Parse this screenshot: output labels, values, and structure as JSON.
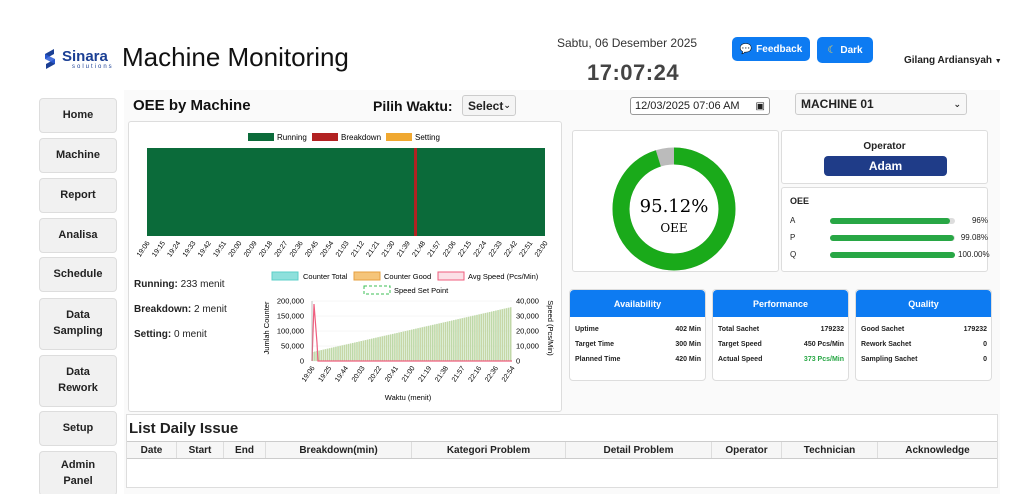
{
  "header": {
    "logo_name": "Sinara",
    "logo_sub": "solutions",
    "title": "Machine Monitoring",
    "date": "Sabtu, 06 Desember 2025",
    "time": "17:07:24",
    "feedback_label": "Feedback",
    "dark_label": "Dark",
    "user_name": "Gilang Ardiansyah"
  },
  "sidebar": {
    "items": [
      "Home",
      "Machine",
      "Report",
      "Analisa",
      "Schedule",
      "Data Sampling",
      "Data Rework",
      "Setup",
      "Admin Panel"
    ]
  },
  "main": {
    "section_title": "OEE by Machine",
    "time_label": "Pilih Waktu:",
    "time_select": "Select",
    "datetime_value": "12/03/2025 07:06 AM",
    "machine_select": "MACHINE 01"
  },
  "timeline": {
    "legend": [
      "Running",
      "Breakdown",
      "Setting"
    ],
    "colors": {
      "running": "#0b6b3a",
      "breakdown": "#b22222",
      "setting": "#f0a830"
    },
    "ticks": [
      "19:06",
      "19:15",
      "19:24",
      "19:33",
      "19:42",
      "19:51",
      "20:00",
      "20:09",
      "20:18",
      "20:27",
      "20:36",
      "20:45",
      "20:54",
      "21:03",
      "21:12",
      "21:21",
      "21:30",
      "21:39",
      "21:48",
      "21:57",
      "22:06",
      "22:15",
      "22:24",
      "22:33",
      "22:42",
      "22:51",
      "23:00"
    ],
    "breakdown_at": "21:43"
  },
  "stats": {
    "running_label": "Running:",
    "running_value": "233 menit",
    "breakdown_label": "Breakdown:",
    "breakdown_value": "2 menit",
    "setting_label": "Setting:",
    "setting_value": "0 menit"
  },
  "chart_data": {
    "type": "bar",
    "title": "",
    "legend": [
      "Counter Total",
      "Counter Good",
      "Avg Speed (Pcs/Min)",
      "Speed Set Point"
    ],
    "xlabel": "Waktu (menit)",
    "ylabel": "Jumlah Counter",
    "y2label": "Speed (Pcs/Min)",
    "ylim": [
      0,
      200000
    ],
    "y2lim": [
      0,
      40000
    ],
    "yticks": [
      "200,000",
      "150,000",
      "100,000",
      "50,000",
      "0"
    ],
    "y2ticks": [
      "40,000",
      "30,000",
      "20,000",
      "10,000",
      "0"
    ],
    "x": [
      "19:06",
      "19:25",
      "19:44",
      "20:03",
      "20:22",
      "20:41",
      "21:00",
      "21:19",
      "21:38",
      "21:57",
      "22:16",
      "22:36",
      "22:54"
    ],
    "counter_total_start": 30000,
    "counter_total_end": 179232,
    "counter_good_start": 30000,
    "counter_good_end": 179232,
    "avg_speed_spike": {
      "at": "19:06",
      "value": 38000
    }
  },
  "gauge": {
    "value": 95.12,
    "value_label": "95.12%",
    "label": "OEE",
    "colors": {
      "good": "#1aaa1a",
      "rest": "#bbbbbb"
    }
  },
  "operator": {
    "label": "Operator",
    "name": "Adam"
  },
  "oee": {
    "title": "OEE",
    "rows": [
      {
        "label": "A",
        "value": 96,
        "text": "96%"
      },
      {
        "label": "P",
        "value": 99.08,
        "text": "99.08%"
      },
      {
        "label": "Q",
        "value": 100,
        "text": "100.00%"
      }
    ]
  },
  "metrics": [
    {
      "title": "Availability",
      "rows": [
        {
          "k": "Uptime",
          "v": "402 Min"
        },
        {
          "k": "Target Time",
          "v": "300 Min"
        },
        {
          "k": "Planned Time",
          "v": "420 Min"
        }
      ]
    },
    {
      "title": "Performance",
      "rows": [
        {
          "k": "Total Sachet",
          "v": "179232"
        },
        {
          "k": "Target Speed",
          "v": "450 Pcs/Min"
        },
        {
          "k": "Actual Speed",
          "v": "373 Pcs/Min"
        }
      ]
    },
    {
      "title": "Quality",
      "rows": [
        {
          "k": "Good Sachet",
          "v": "179232"
        },
        {
          "k": "Rework Sachet",
          "v": "0"
        },
        {
          "k": "Sampling Sachet",
          "v": "0"
        }
      ]
    }
  ],
  "issues": {
    "title": "List Daily Issue",
    "columns": [
      "Date",
      "Start",
      "End",
      "Breakdown(min)",
      "Kategori Problem",
      "Detail Problem",
      "Operator",
      "Technician",
      "Acknowledge"
    ]
  }
}
